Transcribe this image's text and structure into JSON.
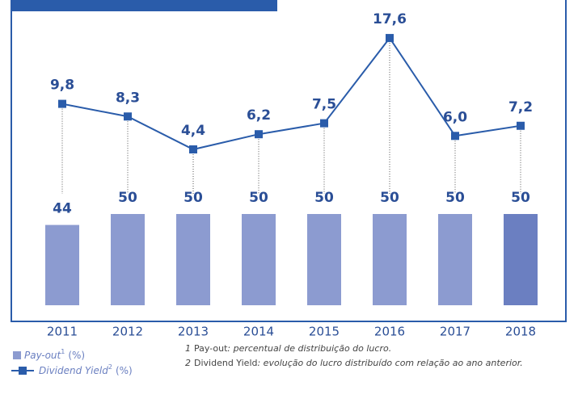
{
  "chart_data": {
    "type": "bar_line",
    "categories": [
      "2011",
      "2012",
      "2013",
      "2014",
      "2015",
      "2016",
      "2017",
      "2018"
    ],
    "series": [
      {
        "name": "Pay-out",
        "note_ref": "1",
        "unit": "(%)",
        "type": "bar",
        "color": "#8c9bd0",
        "colors": [
          "#8c9bd0",
          "#8c9bd0",
          "#8c9bd0",
          "#8c9bd0",
          "#8c9bd0",
          "#8c9bd0",
          "#8c9bd0",
          "#6b7fc1"
        ],
        "values": [
          44,
          50,
          50,
          50,
          50,
          50,
          50,
          50
        ]
      },
      {
        "name": "Dividend Yield",
        "note_ref": "2",
        "unit": "(%)",
        "type": "line",
        "color": "#2a5caa",
        "values": [
          9.8,
          8.3,
          4.4,
          6.2,
          7.5,
          17.6,
          6.0,
          7.2
        ],
        "value_labels": [
          "9,8",
          "8,3",
          "4,4",
          "6,2",
          "7,5",
          "17,6",
          "6,0",
          "7,2"
        ]
      }
    ],
    "footnotes": [
      {
        "number": "1",
        "term": "Pay-out",
        "text": ": percentual de distribuição do lucro."
      },
      {
        "number": "2",
        "term": "Dividend Yield",
        "text": ": evolução do lucro distribuído com relação ao ano anterior."
      }
    ]
  }
}
